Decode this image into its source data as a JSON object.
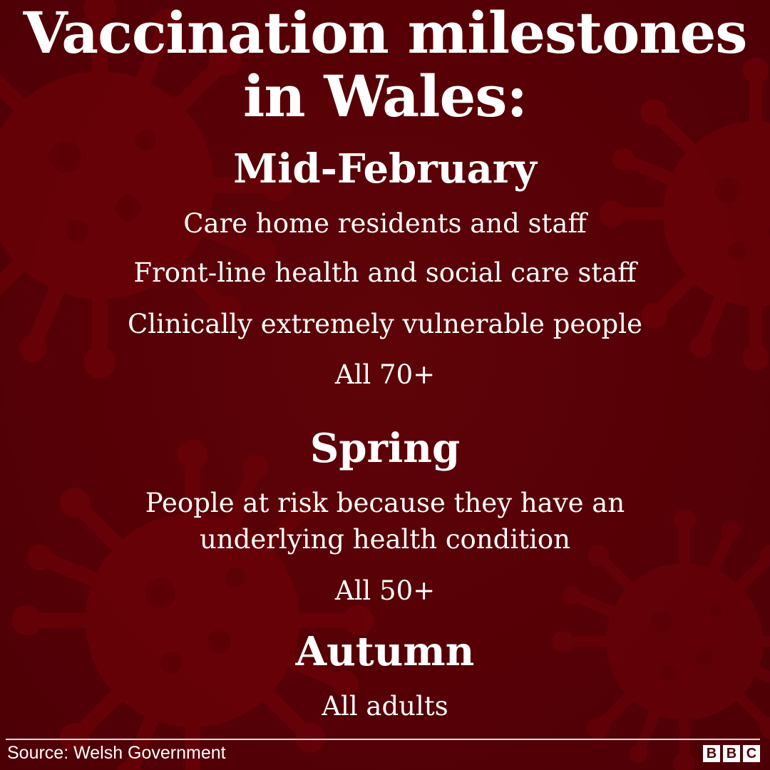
{
  "title": {
    "line1": "Vaccination milestones",
    "line2": "in Wales:"
  },
  "sections": [
    {
      "heading": "Mid-February",
      "items": [
        "Care home residents and staff",
        "Front-line health and social care staff",
        "Clinically extremely vulnerable people",
        "All 70+"
      ]
    },
    {
      "heading": "Spring",
      "items": [
        "People at risk because they have an",
        "underlying health condition",
        "All 50+"
      ]
    },
    {
      "heading": "Autumn",
      "items": [
        "All adults"
      ]
    }
  ],
  "footer": {
    "source": "Source: Welsh Government",
    "logo_letters": [
      "B",
      "B",
      "C"
    ]
  },
  "colors": {
    "background": "#560006",
    "virus": "#6a0208",
    "text": "#ffffff"
  },
  "icons": [
    "virus-icon"
  ]
}
